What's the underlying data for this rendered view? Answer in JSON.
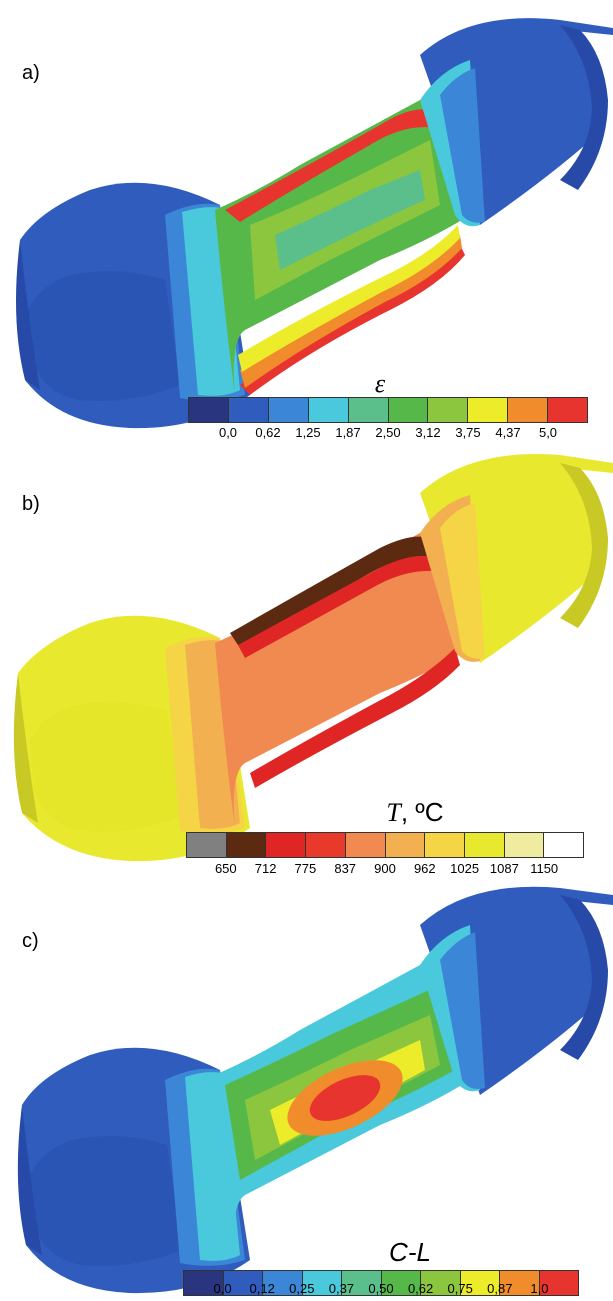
{
  "panels": [
    {
      "label": "a)",
      "title": "ε",
      "colors": [
        "#2a3580",
        "#2f5cbd",
        "#3b86d6",
        "#4ac8dc",
        "#5bbf8c",
        "#57b84a",
        "#8cc63f",
        "#ecec2b",
        "#f08c2b",
        "#e8342e"
      ],
      "ticks": [
        "0,0",
        "0,62",
        "1,25",
        "1,87",
        "2,50",
        "3,12",
        "3,75",
        "4,37",
        "5,0"
      ]
    },
    {
      "label": "b)",
      "title_var": "T",
      "title_unit": ", ºC",
      "colors": [
        "#808080",
        "#5b2a10",
        "#e02525",
        "#e83a2a",
        "#f08a50",
        "#f3b050",
        "#f5d545",
        "#e8e82f",
        "#efeca0",
        "#ffffff"
      ],
      "ticks": [
        "650",
        "712",
        "775",
        "837",
        "900",
        "962",
        "1025",
        "1087",
        "1150"
      ]
    },
    {
      "label": "c)",
      "title": "C-L",
      "colors": [
        "#2a3580",
        "#2f5cbd",
        "#3b86d6",
        "#4ac8dc",
        "#5bbf8c",
        "#57b84a",
        "#8cc63f",
        "#ecec2b",
        "#f08c2b",
        "#e8342e"
      ],
      "ticks": [
        "0,0",
        "0,12",
        "0,25",
        "0,37",
        "0,50",
        "0,62",
        "0,75",
        "0,87",
        "1,0"
      ]
    }
  ]
}
